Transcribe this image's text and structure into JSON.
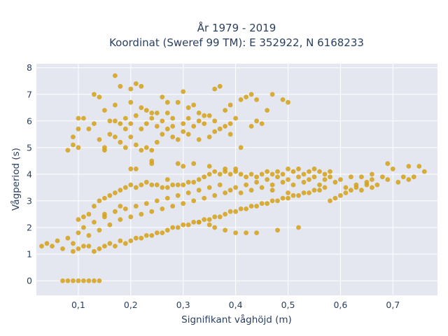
{
  "chart_data": {
    "type": "scatter",
    "title": [
      "År 1979 - 2019",
      "Koordinat (Sweref 99 TM): E 352922, N 6168233"
    ],
    "xlabel": "Signifikant våghöjd (m)",
    "ylabel": "Vågperiod (s)",
    "xlim": [
      0.02,
      0.785
    ],
    "ylim": [
      -0.55,
      8.15
    ],
    "x_ticks": [
      0.1,
      0.2,
      0.3,
      0.4,
      0.5,
      0.6,
      0.7
    ],
    "x_tick_labels": [
      "0,1",
      "0,2",
      "0,3",
      "0,4",
      "0,5",
      "0,6",
      "0,7"
    ],
    "y_ticks": [
      0,
      1,
      2,
      3,
      4,
      5,
      6,
      7,
      8
    ],
    "y_tick_labels": [
      "0",
      "1",
      "2",
      "3",
      "4",
      "5",
      "6",
      "7",
      "8"
    ],
    "grid": true,
    "marker_color": "#d4a017",
    "background_color": "#e5e7f0",
    "series": [
      {
        "points": [
          [
            0.07,
            0
          ],
          [
            0.08,
            0
          ],
          [
            0.09,
            0
          ],
          [
            0.1,
            0
          ],
          [
            0.11,
            0
          ],
          [
            0.12,
            0
          ],
          [
            0.13,
            0
          ],
          [
            0.14,
            0
          ],
          [
            0.03,
            1.3
          ],
          [
            0.04,
            1.4
          ],
          [
            0.05,
            1.3
          ],
          [
            0.06,
            1.5
          ],
          [
            0.07,
            1.2
          ],
          [
            0.08,
            1.6
          ],
          [
            0.09,
            1.4
          ],
          [
            0.1,
            1.8
          ],
          [
            0.11,
            2.0
          ],
          [
            0.12,
            1.7
          ],
          [
            0.13,
            2.2
          ],
          [
            0.14,
            1.9
          ],
          [
            0.15,
            2.4
          ],
          [
            0.16,
            2.1
          ],
          [
            0.17,
            2.6
          ],
          [
            0.18,
            2.3
          ],
          [
            0.19,
            2.7
          ],
          [
            0.2,
            2.4
          ],
          [
            0.21,
            2.8
          ],
          [
            0.22,
            2.5
          ],
          [
            0.23,
            2.9
          ],
          [
            0.24,
            2.6
          ],
          [
            0.25,
            3.0
          ],
          [
            0.26,
            2.7
          ],
          [
            0.27,
            3.1
          ],
          [
            0.28,
            2.8
          ],
          [
            0.29,
            3.2
          ],
          [
            0.3,
            2.9
          ],
          [
            0.31,
            3.3
          ],
          [
            0.32,
            3.0
          ],
          [
            0.33,
            3.4
          ],
          [
            0.34,
            3.1
          ],
          [
            0.35,
            3.5
          ],
          [
            0.36,
            3.2
          ],
          [
            0.37,
            3.6
          ],
          [
            0.38,
            3.3
          ],
          [
            0.39,
            3.4
          ],
          [
            0.4,
            3.5
          ],
          [
            0.41,
            3.3
          ],
          [
            0.42,
            3.6
          ],
          [
            0.43,
            3.4
          ],
          [
            0.44,
            3.7
          ],
          [
            0.45,
            3.5
          ],
          [
            0.46,
            3.8
          ],
          [
            0.47,
            3.6
          ],
          [
            0.48,
            3.9
          ],
          [
            0.49,
            3.7
          ],
          [
            0.5,
            3.8
          ],
          [
            0.51,
            3.6
          ],
          [
            0.52,
            3.9
          ],
          [
            0.53,
            3.7
          ],
          [
            0.54,
            3.8
          ],
          [
            0.55,
            3.9
          ],
          [
            0.56,
            3.6
          ],
          [
            0.57,
            3.8
          ],
          [
            0.58,
            3.9
          ],
          [
            0.59,
            3.7
          ],
          [
            0.6,
            3.8
          ],
          [
            0.61,
            3.5
          ],
          [
            0.62,
            3.9
          ],
          [
            0.63,
            3.6
          ],
          [
            0.64,
            3.9
          ],
          [
            0.65,
            3.7
          ],
          [
            0.66,
            3.8
          ],
          [
            0.67,
            3.6
          ],
          [
            0.68,
            3.9
          ],
          [
            0.69,
            3.8
          ],
          [
            0.7,
            4.2
          ],
          [
            0.71,
            3.7
          ],
          [
            0.72,
            3.9
          ],
          [
            0.73,
            3.8
          ],
          [
            0.74,
            3.9
          ],
          [
            0.75,
            4.3
          ],
          [
            0.76,
            4.1
          ],
          [
            0.73,
            4.3
          ],
          [
            0.69,
            4.4
          ],
          [
            0.66,
            4.0
          ],
          [
            0.09,
            1.1
          ],
          [
            0.1,
            1.2
          ],
          [
            0.11,
            1.3
          ],
          [
            0.12,
            1.3
          ],
          [
            0.13,
            1.1
          ],
          [
            0.14,
            1.2
          ],
          [
            0.15,
            1.3
          ],
          [
            0.16,
            1.4
          ],
          [
            0.17,
            1.3
          ],
          [
            0.18,
            1.5
          ],
          [
            0.19,
            1.4
          ],
          [
            0.2,
            1.5
          ],
          [
            0.21,
            1.6
          ],
          [
            0.22,
            1.6
          ],
          [
            0.23,
            1.7
          ],
          [
            0.24,
            1.7
          ],
          [
            0.25,
            1.8
          ],
          [
            0.26,
            1.8
          ],
          [
            0.27,
            1.9
          ],
          [
            0.28,
            2.0
          ],
          [
            0.29,
            2.0
          ],
          [
            0.3,
            2.1
          ],
          [
            0.31,
            2.1
          ],
          [
            0.32,
            2.2
          ],
          [
            0.33,
            2.2
          ],
          [
            0.34,
            2.3
          ],
          [
            0.35,
            2.3
          ],
          [
            0.36,
            2.4
          ],
          [
            0.37,
            2.4
          ],
          [
            0.38,
            2.5
          ],
          [
            0.39,
            2.6
          ],
          [
            0.4,
            2.6
          ],
          [
            0.41,
            2.7
          ],
          [
            0.42,
            2.7
          ],
          [
            0.43,
            2.8
          ],
          [
            0.44,
            2.8
          ],
          [
            0.45,
            2.9
          ],
          [
            0.46,
            2.9
          ],
          [
            0.47,
            3.0
          ],
          [
            0.48,
            3.0
          ],
          [
            0.49,
            3.1
          ],
          [
            0.5,
            3.1
          ],
          [
            0.51,
            3.2
          ],
          [
            0.52,
            3.2
          ],
          [
            0.53,
            3.3
          ],
          [
            0.54,
            3.3
          ],
          [
            0.55,
            3.4
          ],
          [
            0.56,
            3.4
          ],
          [
            0.57,
            3.5
          ],
          [
            0.58,
            3.0
          ],
          [
            0.59,
            3.1
          ],
          [
            0.6,
            3.2
          ],
          [
            0.61,
            3.3
          ],
          [
            0.62,
            3.4
          ],
          [
            0.63,
            3.5
          ],
          [
            0.64,
            3.4
          ],
          [
            0.65,
            3.6
          ],
          [
            0.66,
            3.5
          ],
          [
            0.12,
            2.5
          ],
          [
            0.13,
            2.8
          ],
          [
            0.14,
            3.0
          ],
          [
            0.15,
            3.1
          ],
          [
            0.16,
            3.2
          ],
          [
            0.17,
            3.3
          ],
          [
            0.18,
            3.4
          ],
          [
            0.19,
            3.5
          ],
          [
            0.2,
            3.6
          ],
          [
            0.21,
            3.5
          ],
          [
            0.22,
            3.6
          ],
          [
            0.23,
            3.7
          ],
          [
            0.24,
            3.6
          ],
          [
            0.25,
            3.6
          ],
          [
            0.26,
            3.5
          ],
          [
            0.27,
            3.5
          ],
          [
            0.28,
            3.6
          ],
          [
            0.29,
            3.6
          ],
          [
            0.3,
            3.6
          ],
          [
            0.31,
            3.7
          ],
          [
            0.32,
            3.7
          ],
          [
            0.33,
            3.8
          ],
          [
            0.34,
            3.9
          ],
          [
            0.35,
            4.0
          ],
          [
            0.36,
            4.1
          ],
          [
            0.37,
            4.0
          ],
          [
            0.38,
            4.1
          ],
          [
            0.39,
            4.0
          ],
          [
            0.4,
            4.1
          ],
          [
            0.41,
            4.0
          ],
          [
            0.42,
            3.9
          ],
          [
            0.43,
            4.0
          ],
          [
            0.44,
            3.9
          ],
          [
            0.45,
            4.0
          ],
          [
            0.46,
            4.1
          ],
          [
            0.47,
            4.0
          ],
          [
            0.48,
            4.1
          ],
          [
            0.49,
            4.0
          ],
          [
            0.5,
            4.2
          ],
          [
            0.51,
            4.1
          ],
          [
            0.52,
            4.2
          ],
          [
            0.53,
            4.0
          ],
          [
            0.54,
            4.1
          ],
          [
            0.55,
            4.2
          ],
          [
            0.56,
            4.1
          ],
          [
            0.57,
            4.0
          ],
          [
            0.58,
            4.1
          ],
          [
            0.32,
            4.4
          ],
          [
            0.35,
            4.3
          ],
          [
            0.29,
            4.4
          ],
          [
            0.24,
            4.4
          ],
          [
            0.3,
            4.3
          ],
          [
            0.21,
            4.2
          ],
          [
            0.11,
            2.4
          ],
          [
            0.1,
            2.3
          ],
          [
            0.15,
            2.5
          ],
          [
            0.18,
            2.8
          ],
          [
            0.27,
            3.8
          ],
          [
            0.38,
            4.2
          ],
          [
            0.36,
            2.0
          ],
          [
            0.38,
            1.9
          ],
          [
            0.4,
            1.8
          ],
          [
            0.42,
            1.8
          ],
          [
            0.44,
            1.8
          ],
          [
            0.48,
            1.9
          ],
          [
            0.52,
            2.0
          ],
          [
            0.33,
            2.2
          ],
          [
            0.35,
            2.1
          ],
          [
            0.08,
            4.9
          ],
          [
            0.09,
            5.1
          ],
          [
            0.1,
            5.0
          ],
          [
            0.09,
            5.4
          ],
          [
            0.1,
            5.7
          ],
          [
            0.1,
            6.1
          ],
          [
            0.11,
            6.1
          ],
          [
            0.13,
            7.0
          ],
          [
            0.14,
            6.9
          ],
          [
            0.12,
            5.7
          ],
          [
            0.13,
            5.9
          ],
          [
            0.14,
            5.3
          ],
          [
            0.15,
            4.9
          ],
          [
            0.15,
            5.0
          ],
          [
            0.16,
            5.5
          ],
          [
            0.15,
            6.4
          ],
          [
            0.16,
            6.0
          ],
          [
            0.17,
            5.4
          ],
          [
            0.17,
            6.6
          ],
          [
            0.17,
            7.7
          ],
          [
            0.18,
            7.3
          ],
          [
            0.19,
            6.1
          ],
          [
            0.2,
            6.7
          ],
          [
            0.2,
            7.2
          ],
          [
            0.21,
            7.4
          ],
          [
            0.22,
            7.3
          ],
          [
            0.22,
            6.5
          ],
          [
            0.23,
            6.4
          ],
          [
            0.24,
            6.3
          ],
          [
            0.25,
            6.3
          ],
          [
            0.26,
            6.9
          ],
          [
            0.27,
            6.7
          ],
          [
            0.27,
            6.3
          ],
          [
            0.28,
            6.1
          ],
          [
            0.29,
            6.7
          ],
          [
            0.3,
            7.1
          ],
          [
            0.31,
            6.5
          ],
          [
            0.32,
            6.6
          ],
          [
            0.33,
            6.3
          ],
          [
            0.34,
            6.2
          ],
          [
            0.36,
            7.2
          ],
          [
            0.37,
            7.3
          ],
          [
            0.38,
            6.4
          ],
          [
            0.39,
            6.6
          ],
          [
            0.4,
            6.1
          ],
          [
            0.41,
            6.8
          ],
          [
            0.42,
            6.9
          ],
          [
            0.43,
            7.0
          ],
          [
            0.44,
            6.8
          ],
          [
            0.46,
            6.4
          ],
          [
            0.47,
            7.0
          ],
          [
            0.49,
            6.8
          ],
          [
            0.5,
            6.7
          ],
          [
            0.45,
            5.9
          ],
          [
            0.44,
            6.0
          ],
          [
            0.43,
            5.8
          ],
          [
            0.39,
            5.5
          ],
          [
            0.41,
            5.0
          ],
          [
            0.35,
            5.4
          ],
          [
            0.36,
            5.6
          ],
          [
            0.37,
            5.7
          ],
          [
            0.33,
            5.3
          ],
          [
            0.31,
            5.5
          ],
          [
            0.3,
            5.6
          ],
          [
            0.28,
            5.8
          ],
          [
            0.26,
            5.5
          ],
          [
            0.25,
            5.2
          ],
          [
            0.24,
            4.9
          ],
          [
            0.23,
            5.0
          ],
          [
            0.22,
            4.9
          ],
          [
            0.21,
            5.1
          ],
          [
            0.2,
            5.4
          ],
          [
            0.19,
            5.7
          ],
          [
            0.18,
            5.9
          ],
          [
            0.17,
            6.0
          ],
          [
            0.18,
            5.2
          ],
          [
            0.19,
            5.0
          ],
          [
            0.2,
            5.9
          ],
          [
            0.21,
            6.2
          ],
          [
            0.22,
            5.7
          ],
          [
            0.23,
            5.9
          ],
          [
            0.24,
            6.1
          ],
          [
            0.25,
            5.8
          ],
          [
            0.26,
            6.0
          ],
          [
            0.27,
            5.7
          ],
          [
            0.28,
            5.4
          ],
          [
            0.29,
            5.3
          ],
          [
            0.3,
            5.9
          ],
          [
            0.31,
            6.1
          ],
          [
            0.32,
            5.8
          ],
          [
            0.33,
            6.0
          ],
          [
            0.34,
            5.9
          ],
          [
            0.35,
            6.2
          ],
          [
            0.36,
            6.0
          ],
          [
            0.38,
            5.8
          ],
          [
            0.39,
            5.9
          ],
          [
            0.2,
            4.2
          ],
          [
            0.24,
            4.5
          ],
          [
            0.4,
            4.2
          ],
          [
            0.47,
            3.4
          ],
          [
            0.5,
            3.3
          ]
        ]
      }
    ]
  }
}
